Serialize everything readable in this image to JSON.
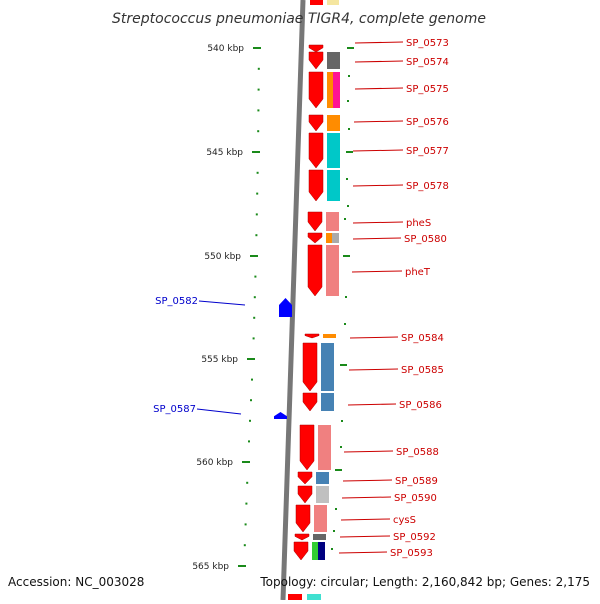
{
  "title": "Streptococcus pneumoniae TIGR4, complete genome",
  "footer": {
    "accession": "Accession: NC_003028",
    "stats": "Topology: circular; Length: 2,160,842 bp; Genes: 2,175"
  },
  "colors": {
    "tick": "#1a8a1a",
    "backbone": "#777777",
    "forward_label": "#cc0000",
    "reverse_label": "#0000cc",
    "gene_forward": "#ff0000",
    "gene_reverse": "#0000ff"
  },
  "scale": {
    "ticks": [
      {
        "label": "540 kbp"
      },
      {
        "label": "545 kbp"
      },
      {
        "label": "550 kbp"
      },
      {
        "label": "555 kbp"
      },
      {
        "label": "560 kbp"
      },
      {
        "label": "565 kbp"
      }
    ]
  },
  "genes_forward": [
    {
      "label": "SP_0573",
      "color": "#ff0000",
      "cog_color": "#ffffff"
    },
    {
      "label": "SP_0574",
      "color": "#ff0000",
      "cog_color": "#666666"
    },
    {
      "label": "SP_0575",
      "color": "#ff0000",
      "cog_color": "#ff8c00",
      "cog_color2": "#ff1493"
    },
    {
      "label": "SP_0576",
      "color": "#ff0000",
      "cog_color": "#ff8c00"
    },
    {
      "label": "SP_0577",
      "color": "#ff0000",
      "cog_color": "#00c8c8"
    },
    {
      "label": "SP_0578",
      "color": "#ff0000",
      "cog_color": "#00c8c8"
    },
    {
      "label": "pheS",
      "color": "#ff0000",
      "cog_color": "#f08080"
    },
    {
      "label": "SP_0580",
      "color": "#ff0000",
      "cog_color": "#ff8c00",
      "cog_color2": "#aaaaaa"
    },
    {
      "label": "pheT",
      "color": "#ff0000",
      "cog_color": "#f08080"
    },
    {
      "label": "SP_0584",
      "color": "#ff0000",
      "cog_color": "#ff8c00"
    },
    {
      "label": "SP_0585",
      "color": "#ff0000",
      "cog_color": "#4682b4"
    },
    {
      "label": "SP_0586",
      "color": "#ff0000",
      "cog_color": "#4682b4"
    },
    {
      "label": "SP_0588",
      "color": "#ff0000",
      "cog_color": "#f08080"
    },
    {
      "label": "SP_0589",
      "color": "#ff0000",
      "cog_color": "#4682b4"
    },
    {
      "label": "SP_0590",
      "color": "#ff0000",
      "cog_color": "#c0c0c0"
    },
    {
      "label": "cysS",
      "color": "#ff0000",
      "cog_color": "#f08080"
    },
    {
      "label": "SP_0592",
      "color": "#ff0000",
      "cog_color": "#666666"
    },
    {
      "label": "SP_0593",
      "color": "#ff0000",
      "cog_color": "#32cd32",
      "cog_color2": "#000080"
    }
  ],
  "genes_reverse": [
    {
      "label": "SP_0582",
      "color": "#0000ff"
    },
    {
      "label": "SP_0587",
      "color": "#0000ff"
    }
  ]
}
